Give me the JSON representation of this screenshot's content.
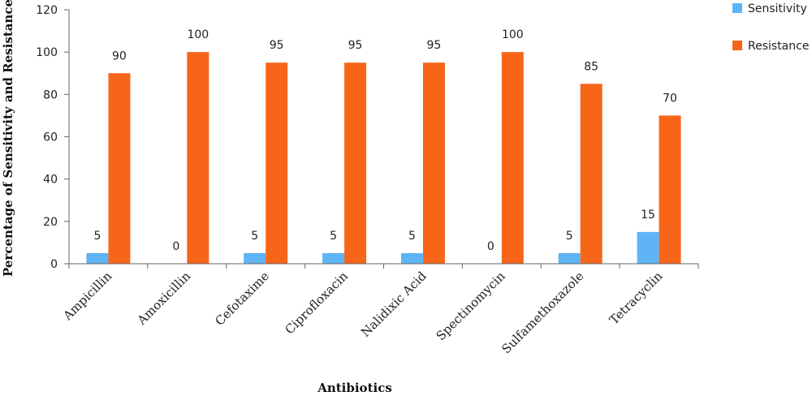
{
  "chart_data": {
    "type": "bar",
    "categories": [
      "Ampicillin",
      "Amoxicillin",
      "Cefotaxime",
      "Ciprofloxacin",
      "Nalidixic Acid",
      "Spectinomycin",
      "Sulfamethoxazole",
      "Tetracyclin"
    ],
    "series": [
      {
        "name": "Sensitivity",
        "color": "#5eb4f5",
        "values": [
          5,
          0,
          5,
          5,
          5,
          0,
          5,
          15
        ]
      },
      {
        "name": "Resistance",
        "color": "#f76519",
        "values": [
          90,
          100,
          95,
          95,
          95,
          100,
          85,
          70
        ]
      }
    ],
    "title": "",
    "xlabel": "Antibiotics",
    "ylabel": "Percentage of Sensitivity and Resistance",
    "ylim": [
      0,
      120
    ],
    "yticks": [
      0,
      20,
      40,
      60,
      80,
      100,
      120
    ],
    "grid": false,
    "legend_position": "top-right",
    "data_labels": true
  }
}
